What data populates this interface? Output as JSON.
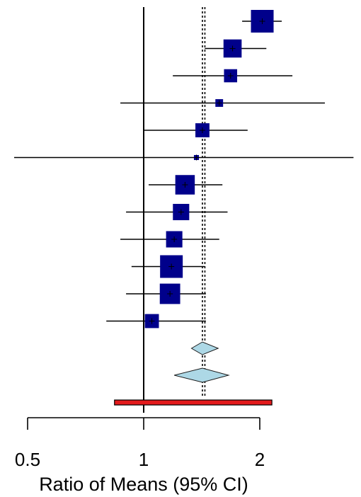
{
  "chart_data": {
    "type": "forest",
    "xlabel": "Ratio of Means (95% CI)",
    "x_scale": "log",
    "xlim": [
      0.5,
      2
    ],
    "x_ticks": [
      0.5,
      1,
      2
    ],
    "x_tick_labels": [
      "0.5",
      "1",
      "2"
    ],
    "null_line": 1,
    "pooled_line": 1.42,
    "studies": [
      {
        "estimate": 2.03,
        "lower": 1.8,
        "upper": 2.28,
        "weight": 1.0
      },
      {
        "estimate": 1.7,
        "lower": 1.44,
        "upper": 2.08,
        "weight": 0.8
      },
      {
        "estimate": 1.68,
        "lower": 1.19,
        "upper": 2.43,
        "weight": 0.58
      },
      {
        "estimate": 1.57,
        "lower": 0.87,
        "upper": 2.95,
        "weight": 0.34
      },
      {
        "estimate": 1.42,
        "lower": 1.0,
        "upper": 1.86,
        "weight": 0.62
      },
      {
        "estimate": 1.37,
        "lower": 0.37,
        "upper": 3.5,
        "weight": 0.22
      },
      {
        "estimate": 1.28,
        "lower": 1.03,
        "upper": 1.6,
        "weight": 0.86
      },
      {
        "estimate": 1.25,
        "lower": 0.9,
        "upper": 1.65,
        "weight": 0.72
      },
      {
        "estimate": 1.2,
        "lower": 0.87,
        "upper": 1.57,
        "weight": 0.72
      },
      {
        "estimate": 1.18,
        "lower": 0.93,
        "upper": 1.44,
        "weight": 1.0
      },
      {
        "estimate": 1.17,
        "lower": 0.9,
        "upper": 1.45,
        "weight": 0.9
      },
      {
        "estimate": 1.05,
        "lower": 0.8,
        "upper": 1.45,
        "weight": 0.62
      }
    ],
    "summary": [
      {
        "estimate": 1.42,
        "lower": 1.33,
        "upper": 1.56
      },
      {
        "estimate": 1.42,
        "lower": 1.2,
        "upper": 1.66
      }
    ],
    "prediction_interval": {
      "lower": 0.84,
      "upper": 2.15
    },
    "colors": {
      "study_box": "#00008b",
      "summary_diamond": "#add8e6",
      "prediction_bar": "#e31a1c"
    },
    "grid": false
  }
}
